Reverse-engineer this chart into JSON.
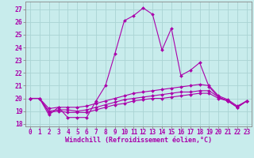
{
  "xlabel": "Windchill (Refroidissement éolien,°C)",
  "background_color": "#c8ecec",
  "grid_color": "#aad4d4",
  "line_color": "#aa00aa",
  "spine_color": "#888888",
  "x_ticks": [
    0,
    1,
    2,
    3,
    4,
    5,
    6,
    7,
    8,
    9,
    10,
    11,
    12,
    13,
    14,
    15,
    16,
    17,
    18,
    19,
    20,
    21,
    22,
    23
  ],
  "y_ticks": [
    18,
    19,
    20,
    21,
    22,
    23,
    24,
    25,
    26,
    27
  ],
  "xlim": [
    -0.5,
    23.5
  ],
  "ylim": [
    17.8,
    27.6
  ],
  "series": [
    [
      20.0,
      20.0,
      18.7,
      19.3,
      18.5,
      18.5,
      18.5,
      19.8,
      21.0,
      23.5,
      26.1,
      26.5,
      27.1,
      26.6,
      23.8,
      25.5,
      21.8,
      22.2,
      22.8,
      20.9,
      20.1,
      19.8,
      19.3,
      19.8
    ],
    [
      20.0,
      20.0,
      19.2,
      19.3,
      19.3,
      19.3,
      19.4,
      19.6,
      19.8,
      20.0,
      20.2,
      20.4,
      20.5,
      20.6,
      20.7,
      20.8,
      20.9,
      21.0,
      21.1,
      21.0,
      20.2,
      19.9,
      19.4,
      19.8
    ],
    [
      20.0,
      20.0,
      19.0,
      19.1,
      19.1,
      19.0,
      19.1,
      19.3,
      19.5,
      19.7,
      19.9,
      20.0,
      20.1,
      20.2,
      20.3,
      20.4,
      20.5,
      20.5,
      20.6,
      20.6,
      20.1,
      19.8,
      19.3,
      19.8
    ],
    [
      20.0,
      20.0,
      18.9,
      19.0,
      18.9,
      18.9,
      18.9,
      19.1,
      19.3,
      19.5,
      19.6,
      19.8,
      19.9,
      20.0,
      20.0,
      20.1,
      20.2,
      20.3,
      20.4,
      20.4,
      20.0,
      19.8,
      19.3,
      19.8
    ]
  ],
  "tick_fontsize": 5.5,
  "xlabel_fontsize": 6.0,
  "marker": "D",
  "markersize": 2.0,
  "linewidth": 0.8
}
